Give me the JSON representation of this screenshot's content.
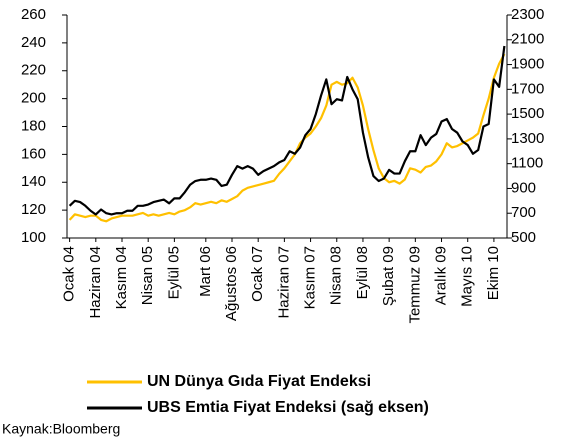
{
  "chart_data": {
    "type": "line",
    "categories": [
      "Ocak 04",
      null,
      null,
      null,
      null,
      "Haziran 04",
      null,
      null,
      null,
      null,
      "Kasım 04",
      null,
      null,
      null,
      null,
      "Nisan 05",
      null,
      null,
      null,
      null,
      "Eylül 05",
      null,
      null,
      null,
      null,
      null,
      "Mart 06",
      null,
      null,
      null,
      null,
      "Ağustos 06",
      null,
      null,
      null,
      null,
      "Ocak 07",
      null,
      null,
      null,
      null,
      "Haziran 07",
      null,
      null,
      null,
      null,
      "Kasım 07",
      null,
      null,
      null,
      null,
      "Nisan 08",
      null,
      null,
      null,
      null,
      "Eylül 08",
      null,
      null,
      null,
      null,
      "Şubat 09",
      null,
      null,
      null,
      null,
      "Temmuz 09",
      null,
      null,
      null,
      null,
      "Aralık 09",
      null,
      null,
      null,
      null,
      "Mayıs 10",
      null,
      null,
      null,
      null,
      "Ekim 10",
      null,
      null
    ],
    "series": [
      {
        "name": "UN Dünya Gıda Fiyat Endeksi",
        "color": "#ffc000",
        "axis": "y",
        "values": [
          113,
          117,
          116,
          115,
          116,
          116,
          113,
          112,
          114,
          115,
          116,
          116,
          116,
          117,
          118,
          116,
          117,
          116,
          117,
          118,
          117,
          119,
          120,
          122,
          125,
          124,
          125,
          126,
          125,
          127,
          126,
          128,
          130,
          134,
          136,
          137,
          138,
          139,
          140,
          141,
          146,
          150,
          155,
          160,
          168,
          172,
          175,
          180,
          186,
          195,
          210,
          212,
          210,
          211,
          215,
          208,
          195,
          178,
          163,
          150,
          143,
          140,
          141,
          139,
          142,
          150,
          149,
          147,
          151,
          152,
          155,
          160,
          168,
          165,
          166,
          168,
          170,
          172,
          175,
          188,
          200,
          215,
          225,
          232
        ]
      },
      {
        "name": "UBS Emtia Fiyat Endeksi (sağ eksen)",
        "color": "#000000",
        "axis": "y2",
        "values": [
          760,
          800,
          790,
          760,
          720,
          690,
          730,
          700,
          690,
          700,
          700,
          720,
          720,
          760,
          760,
          770,
          790,
          800,
          810,
          780,
          820,
          820,
          870,
          930,
          960,
          970,
          970,
          980,
          970,
          920,
          930,
          1010,
          1080,
          1060,
          1080,
          1060,
          1010,
          1040,
          1060,
          1080,
          1110,
          1130,
          1200,
          1180,
          1230,
          1330,
          1380,
          1500,
          1650,
          1780,
          1580,
          1620,
          1610,
          1800,
          1700,
          1620,
          1350,
          1150,
          1000,
          960,
          980,
          1050,
          1020,
          1020,
          1120,
          1200,
          1200,
          1330,
          1250,
          1310,
          1340,
          1440,
          1460,
          1380,
          1350,
          1280,
          1250,
          1180,
          1210,
          1400,
          1420,
          1780,
          1720,
          2050
        ]
      }
    ],
    "ylim": [
      100,
      260
    ],
    "yticks": [
      100,
      120,
      140,
      160,
      180,
      200,
      220,
      240,
      260
    ],
    "y2lim": [
      500,
      2300
    ],
    "y2ticks": [
      500,
      700,
      900,
      1100,
      1300,
      1500,
      1700,
      1900,
      2100,
      2300
    ],
    "source": "Kaynak:Bloomberg"
  }
}
